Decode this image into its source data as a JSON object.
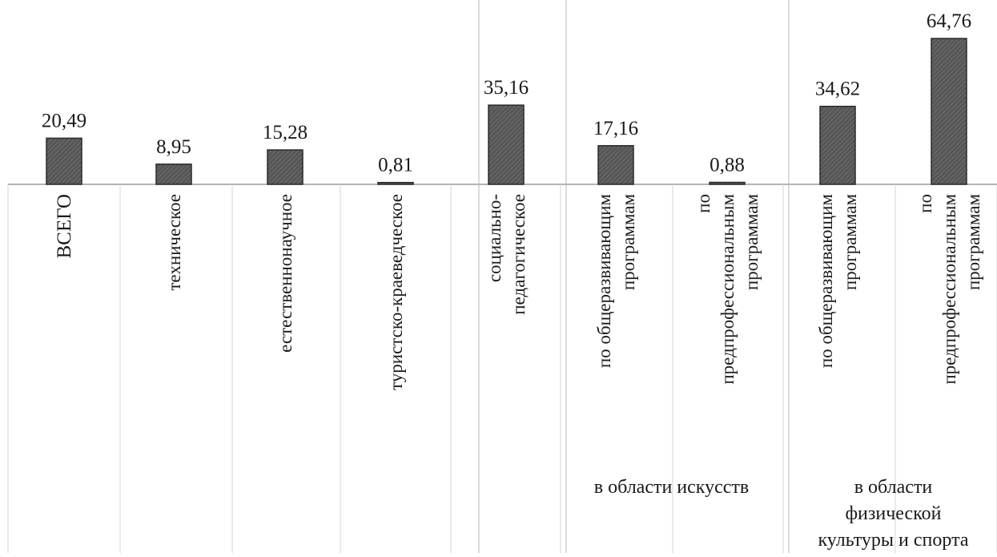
{
  "colors": {
    "bar_fill": "#555555",
    "bar_stroke": "#2b2b2b",
    "text": "#1a1a1a",
    "grid": "#b8b8b8"
  },
  "chart_data": {
    "type": "bar",
    "title": "",
    "xlabel": "",
    "ylabel": "",
    "ylim": [
      0,
      70
    ],
    "grid": false,
    "legend": "none",
    "categories": [
      [
        "ВСЕГО"
      ],
      [
        "техническое"
      ],
      [
        "естественнонаучное"
      ],
      [
        "туристско-краеведческое"
      ],
      [
        "социально-",
        "педагогическое"
      ],
      [
        "по общеразвивающим",
        "программам"
      ],
      [
        "по",
        "предпрофессиональным",
        "программам"
      ],
      [
        "по общеразвивающим",
        "программам"
      ],
      [
        "по",
        "предпрофессиональным",
        "программам"
      ]
    ],
    "values": [
      20.49,
      8.95,
      15.28,
      0.81,
      35.16,
      17.16,
      0.88,
      34.62,
      64.76
    ],
    "value_labels": [
      "20,49",
      "8,95",
      "15,28",
      "0,81",
      "35,16",
      "17,16",
      "0,88",
      "34,62",
      "64,76"
    ],
    "groups": [
      {
        "label": [
          "в области искусств"
        ],
        "categories": [
          5,
          6
        ]
      },
      {
        "label": [
          "в области",
          "физической",
          "культуры и спорта"
        ],
        "categories": [
          7,
          8
        ]
      }
    ]
  }
}
